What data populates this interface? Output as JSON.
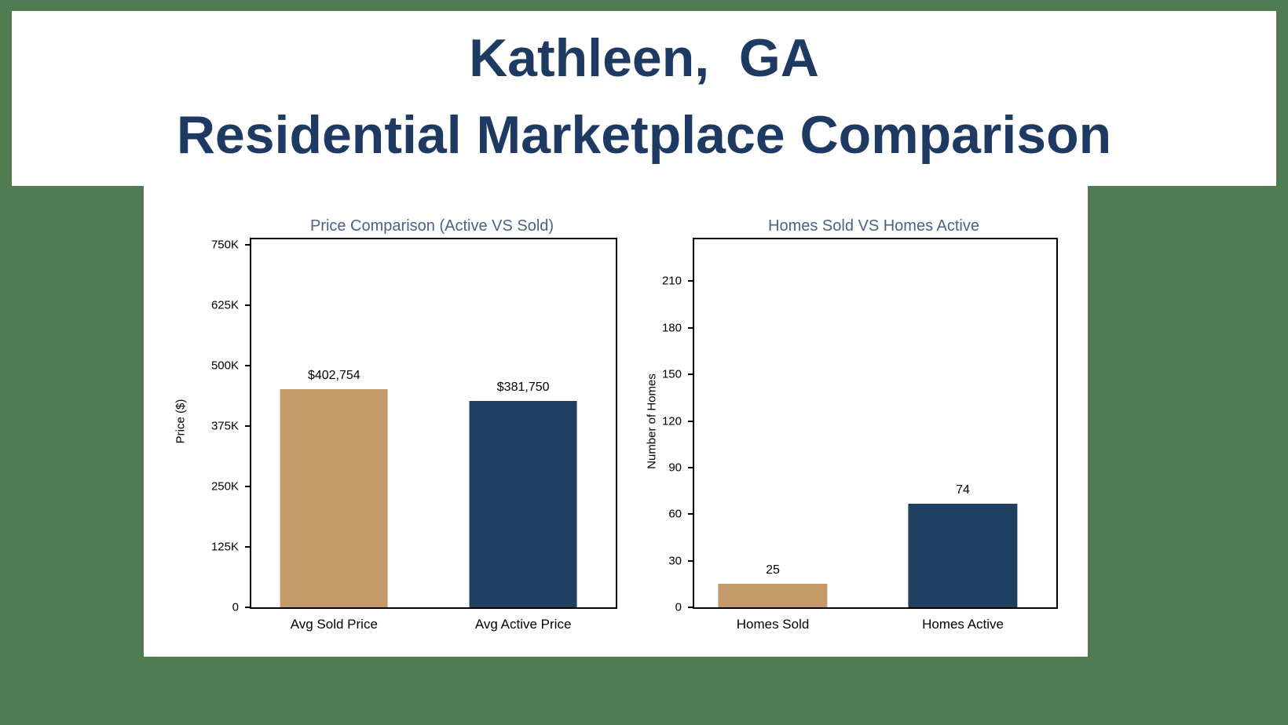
{
  "header": {
    "title_line1": "Kathleen,  GA",
    "title_line2": "Residential Marketplace Comparison"
  },
  "colors": {
    "page_background": "#4f7b51",
    "card_background": "#ffffff",
    "title_text": "#1e3a63",
    "chart_title_text": "#4a6285",
    "bar_tan": "#c59a6b",
    "bar_navy": "#1f4060"
  },
  "chart_data": [
    {
      "type": "bar",
      "title": "Price Comparison (Active VS Sold)",
      "ylabel": "Price ($)",
      "xlabel": "",
      "categories": [
        "Avg Sold Price",
        "Avg Active Price"
      ],
      "values": [
        402754,
        381750
      ],
      "value_labels": [
        "$402,754",
        "$381,750"
      ],
      "bar_colors": [
        "#c59a6b",
        "#1f4060"
      ],
      "ylim": [
        0,
        750000
      ],
      "grid": false,
      "legend": "none",
      "yticks": [
        {
          "value": 0,
          "label": "0"
        },
        {
          "value": 125000,
          "label": "125K"
        },
        {
          "value": 250000,
          "label": "250K"
        },
        {
          "value": 375000,
          "label": "375K"
        },
        {
          "value": 500000,
          "label": "500K"
        },
        {
          "value": 625000,
          "label": "625K"
        },
        {
          "value": 750000,
          "label": "750K"
        }
      ],
      "layout": {
        "axis_max": 762000,
        "bar_centers_pct": [
          22.7,
          74.6
        ],
        "bar_width_pct": 29.5,
        "bar_height_fractions": [
          0.593,
          0.561
        ]
      }
    },
    {
      "type": "bar",
      "title": "Homes Sold VS Homes Active",
      "ylabel": "Number of Homes",
      "xlabel": "",
      "categories": [
        "Homes Sold",
        "Homes Active"
      ],
      "values": [
        25,
        74
      ],
      "value_labels": [
        "25",
        "74"
      ],
      "bar_colors": [
        "#c59a6b",
        "#1f4060"
      ],
      "ylim": [
        0,
        225
      ],
      "grid": false,
      "legend": "none",
      "yticks": [
        {
          "value": 0,
          "label": "0"
        },
        {
          "value": 30,
          "label": "30"
        },
        {
          "value": 60,
          "label": "60"
        },
        {
          "value": 90,
          "label": "90"
        },
        {
          "value": 120,
          "label": "120"
        },
        {
          "value": 150,
          "label": "150"
        },
        {
          "value": 180,
          "label": "180"
        },
        {
          "value": 210,
          "label": "210"
        }
      ],
      "layout": {
        "axis_max": 237,
        "bar_centers_pct": [
          21.7,
          74.2
        ],
        "bar_width_pct": 30.2,
        "bar_height_fractions": [
          0.064,
          0.281
        ]
      }
    }
  ]
}
